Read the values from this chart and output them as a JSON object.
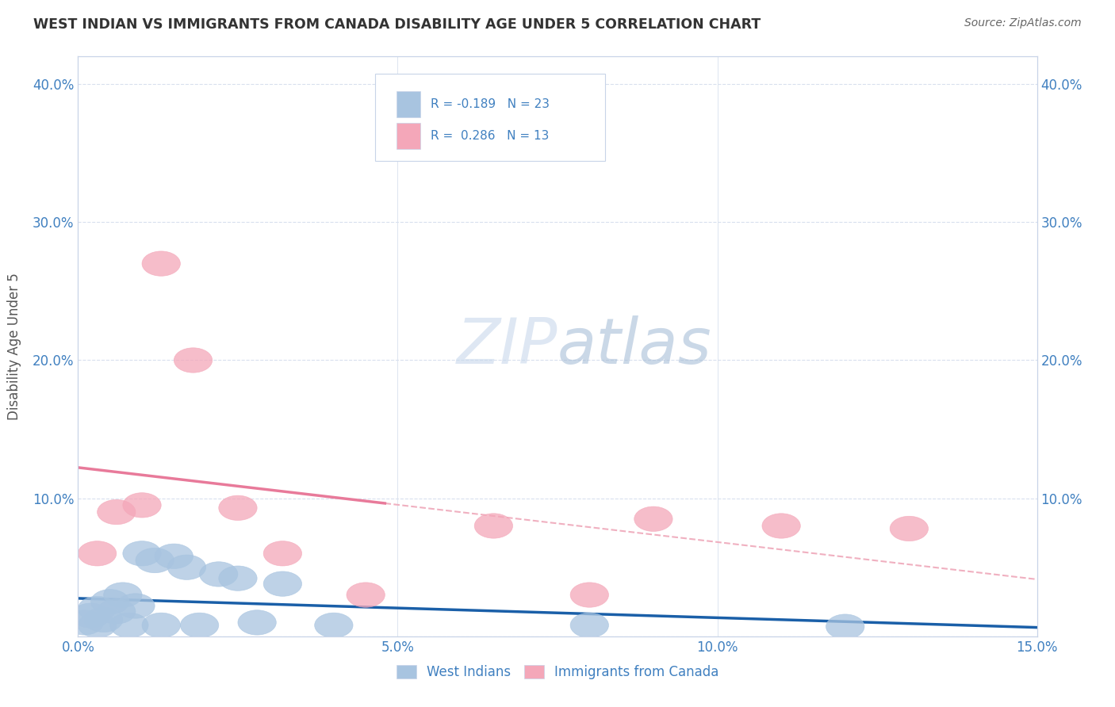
{
  "title": "WEST INDIAN VS IMMIGRANTS FROM CANADA DISABILITY AGE UNDER 5 CORRELATION CHART",
  "source": "Source: ZipAtlas.com",
  "ylabel": "Disability Age Under 5",
  "xlim": [
    0.0,
    0.15
  ],
  "ylim": [
    0.0,
    0.42
  ],
  "xticks": [
    0.0,
    0.05,
    0.1,
    0.15
  ],
  "xticklabels": [
    "0.0%",
    "5.0%",
    "10.0%",
    "15.0%"
  ],
  "yticks": [
    0.0,
    0.1,
    0.2,
    0.3,
    0.4
  ],
  "yticklabels": [
    "",
    "10.0%",
    "20.0%",
    "30.0%",
    "40.0%"
  ],
  "west_indian_x": [
    0.001,
    0.002,
    0.003,
    0.003,
    0.004,
    0.005,
    0.006,
    0.007,
    0.008,
    0.009,
    0.01,
    0.012,
    0.013,
    0.015,
    0.017,
    0.019,
    0.022,
    0.025,
    0.028,
    0.032,
    0.04,
    0.08,
    0.12
  ],
  "west_indian_y": [
    0.01,
    0.015,
    0.02,
    0.008,
    0.012,
    0.025,
    0.018,
    0.03,
    0.008,
    0.022,
    0.06,
    0.055,
    0.008,
    0.058,
    0.05,
    0.008,
    0.045,
    0.042,
    0.01,
    0.038,
    0.008,
    0.008,
    0.007
  ],
  "canada_x": [
    0.003,
    0.006,
    0.01,
    0.013,
    0.018,
    0.025,
    0.032,
    0.045,
    0.065,
    0.08,
    0.09,
    0.11,
    0.13
  ],
  "canada_y": [
    0.06,
    0.09,
    0.095,
    0.27,
    0.2,
    0.093,
    0.06,
    0.03,
    0.08,
    0.03,
    0.085,
    0.08,
    0.078
  ],
  "west_indian_R": -0.189,
  "west_indian_N": 23,
  "canada_R": 0.286,
  "canada_N": 13,
  "blue_color": "#a8c4e0",
  "pink_color": "#f4a7b9",
  "blue_line_color": "#1a5fa8",
  "pink_line_color": "#e87a9a",
  "pink_line_color_light": "#f0b0c0",
  "blue_text_color": "#4080c0",
  "axis_color": "#c8d4e8",
  "grid_color": "#d8e0ee",
  "background_color": "#ffffff",
  "watermark_color_zip": "#c8d8ec",
  "watermark_color_atlas": "#a0b8d4",
  "title_color": "#333333",
  "source_color": "#666666",
  "ylabel_color": "#555555"
}
